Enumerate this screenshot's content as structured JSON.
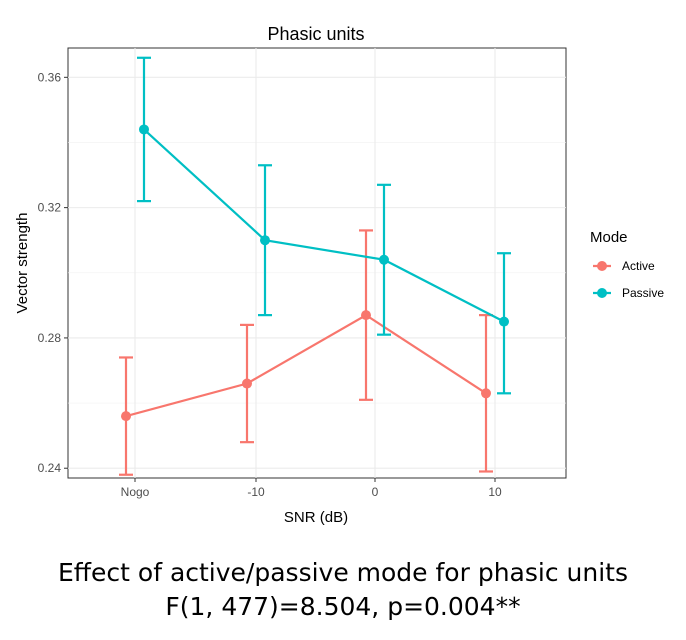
{
  "chart_data": {
    "type": "line",
    "title": "Phasic units",
    "xlabel": "SNR (dB)",
    "ylabel": "Vector strength",
    "categories": [
      "Nogo",
      "-10",
      "0",
      "10"
    ],
    "yticks": [
      "0.24",
      "0.28",
      "0.32",
      "0.36"
    ],
    "ylim": [
      0.237,
      0.369
    ],
    "grid": true,
    "legend": {
      "title": "Mode",
      "position": "right"
    },
    "series": [
      {
        "name": "Active",
        "color": "#F8766D",
        "values": [
          0.256,
          0.266,
          0.287,
          0.263
        ],
        "error_low": [
          0.238,
          0.248,
          0.261,
          0.239
        ],
        "error_high": [
          0.274,
          0.284,
          0.313,
          0.287
        ]
      },
      {
        "name": "Passive",
        "color": "#00BFC4",
        "values": [
          0.344,
          0.31,
          0.304,
          0.285
        ],
        "error_low": [
          0.322,
          0.287,
          0.281,
          0.263
        ],
        "error_high": [
          0.366,
          0.333,
          0.327,
          0.306
        ]
      }
    ]
  },
  "caption": {
    "line1": "Effect of active/passive mode for phasic units",
    "line2": "F(1, 477)=8.504, p=0.004**"
  }
}
